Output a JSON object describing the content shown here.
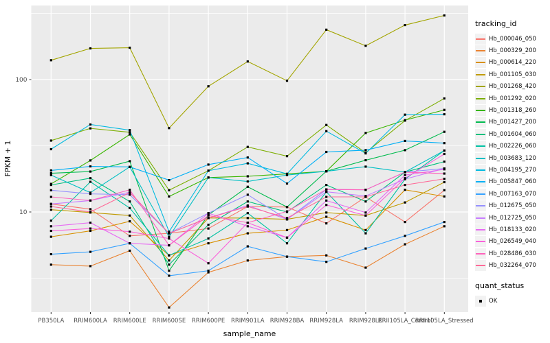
{
  "figure": {
    "y_axis_title": "FPKM + 1",
    "x_axis_title": "sample_name",
    "y_ticks": [
      {
        "label": "100",
        "value": 100
      },
      {
        "label": "10",
        "value": 10
      }
    ],
    "legend_title": "tracking_id",
    "status_legend_title": "quant_status",
    "status_items": [
      {
        "label": "OK",
        "shape": "square",
        "color": "#000000"
      }
    ],
    "colors": {
      "panel_background": "#EBEBEB",
      "gridline": "#FFFFFF",
      "tick_label": "#4D4D4D",
      "axis_title": "#000000",
      "point": "#000000",
      "legend_key_background": "#F2F2F2"
    }
  },
  "chart_data": {
    "type": "line",
    "x_scale": "categorical",
    "y_scale": "log10",
    "ylim": [
      1.8,
      360
    ],
    "grid": true,
    "legend_position": "right",
    "point_shape": "black-square",
    "title": "",
    "xlabel": "sample_name",
    "ylabel": "FPKM + 1",
    "categories": [
      "PB350LA",
      "RRIM600LA",
      "RRIM600LE",
      "RRIM600SE",
      "RRIM600PE",
      "RRIM901LA",
      "RRIM928BA",
      "RRIM928LA",
      "RRIM928LE",
      "RRII105LA_Control",
      "RRII105LA_Stressed"
    ],
    "series": [
      {
        "name": "Hb_000046_050",
        "color": "#F8766D",
        "values": [
          11.5,
          10.5,
          6.6,
          6.9,
          7.5,
          11.0,
          10.9,
          8.2,
          13.0,
          8.4,
          14.6
        ]
      },
      {
        "name": "Hb_000329_200",
        "color": "#EA8331",
        "values": [
          4.0,
          3.9,
          5.1,
          1.9,
          3.5,
          4.3,
          4.6,
          4.7,
          3.8,
          5.7,
          7.8
        ]
      },
      {
        "name": "Hb_000614_220",
        "color": "#D89000",
        "values": [
          6.5,
          7.2,
          8.5,
          4.7,
          5.8,
          6.9,
          7.3,
          9.2,
          7.3,
          14.7,
          13.1
        ]
      },
      {
        "name": "Hb_001105_030",
        "color": "#C09B00",
        "values": [
          10.4,
          9.9,
          9.4,
          4.3,
          9.0,
          9.0,
          8.8,
          9.9,
          9.4,
          11.8,
          16.8
        ]
      },
      {
        "name": "Hb_001268_420",
        "color": "#A3A500",
        "values": [
          140,
          172,
          174,
          43,
          89,
          137,
          98,
          238,
          180,
          258,
          305
        ]
      },
      {
        "name": "Hb_001292_020",
        "color": "#7CAE00",
        "values": [
          34.6,
          42.8,
          40,
          14.6,
          20.5,
          31,
          26.4,
          45.4,
          28,
          49,
          72
        ]
      },
      {
        "name": "Hb_001318_260",
        "color": "#39B600",
        "values": [
          16.3,
          24.5,
          38.5,
          13.1,
          18.2,
          18.6,
          19.4,
          20.3,
          39.5,
          49.4,
          59
        ]
      },
      {
        "name": "Hb_001427_200",
        "color": "#00BB4E",
        "values": [
          19.6,
          20.2,
          24.2,
          3.6,
          9.5,
          15.5,
          10.9,
          20.3,
          24.6,
          29.3,
          40.3
        ]
      },
      {
        "name": "Hb_001604_060",
        "color": "#00BF7D",
        "values": [
          16.0,
          18.0,
          12.0,
          4.0,
          8.0,
          12.0,
          10.0,
          16.0,
          12.0,
          20.0,
          24.0
        ]
      },
      {
        "name": "Hb_002226_060",
        "color": "#00C1A3",
        "values": [
          8.6,
          16.9,
          10.7,
          4.7,
          6.3,
          9.8,
          5.8,
          14.2,
          6.9,
          17.7,
          29.1
        ]
      },
      {
        "name": "Hb_003683_120",
        "color": "#00BFC4",
        "values": [
          19.0,
          14.0,
          21.9,
          6.5,
          18.2,
          17.0,
          19.0,
          20.3,
          22.0,
          20.0,
          29.1
        ]
      },
      {
        "name": "Hb_004195_270",
        "color": "#00BAE0",
        "values": [
          29.8,
          45.8,
          41.5,
          7.1,
          20.5,
          23.3,
          19.4,
          40.8,
          27.7,
          54.3,
          54.7
        ]
      },
      {
        "name": "Hb_005847_060",
        "color": "#00B0F6",
        "values": [
          20.6,
          22.1,
          21.9,
          17.4,
          22.8,
          25.8,
          16.4,
          28.4,
          29.3,
          34.4,
          33.1
        ]
      },
      {
        "name": "Hb_007163_070",
        "color": "#35A2FF",
        "values": [
          4.8,
          5.0,
          5.8,
          3.3,
          3.6,
          5.5,
          4.6,
          4.2,
          5.3,
          6.6,
          8.4
        ]
      },
      {
        "name": "Hb_012675_050",
        "color": "#9590FF",
        "values": [
          14.6,
          13.7,
          13.5,
          6.9,
          9.8,
          13.5,
          8.8,
          14.8,
          14.7,
          20.0,
          21.3
        ]
      },
      {
        "name": "Hb_012725_050",
        "color": "#C77CFF",
        "values": [
          11.5,
          12.2,
          14.1,
          6.9,
          9.0,
          11.2,
          8.8,
          14.2,
          13.2,
          17.7,
          21.3
        ]
      },
      {
        "name": "Hb_018133_020",
        "color": "#E76BF3",
        "values": [
          7.8,
          8.3,
          5.8,
          5.6,
          9.8,
          7.8,
          6.4,
          12.2,
          9.9,
          19.0,
          21.0
        ]
      },
      {
        "name": "Hb_026549_040",
        "color": "#FA62DB",
        "values": [
          7.2,
          7.5,
          7.1,
          6.3,
          4.1,
          8.3,
          6.4,
          11.3,
          9.4,
          18.0,
          27.4
        ]
      },
      {
        "name": "Hb_028486_030",
        "color": "#FF62BC",
        "values": [
          13.0,
          12.2,
          14.7,
          5.6,
          9.4,
          8.3,
          10.1,
          14.8,
          14.7,
          20.0,
          19.5
        ]
      },
      {
        "name": "Hb_032264_070",
        "color": "#FF6A98",
        "values": [
          11.0,
          10.0,
          14.0,
          6.9,
          9.0,
          11.0,
          9.0,
          13.0,
          13.0,
          16.0,
          17.8
        ]
      }
    ]
  }
}
